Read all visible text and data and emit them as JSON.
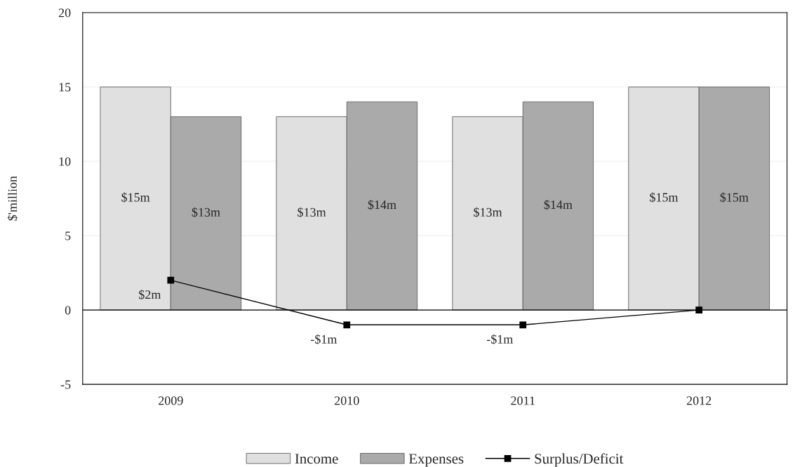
{
  "chart_data": {
    "type": "bar",
    "ylabel": "$'million",
    "categories": [
      "2009",
      "2010",
      "2011",
      "2012"
    ],
    "series": [
      {
        "name": "Income",
        "color": "#e0e0e0",
        "values": [
          15,
          13,
          13,
          15
        ],
        "value_labels": [
          "$15m",
          "$13m",
          "$13m",
          "$15m"
        ]
      },
      {
        "name": "Expenses",
        "color": "#aaaaaa",
        "values": [
          13,
          14,
          14,
          15
        ],
        "value_labels": [
          "$13m",
          "$14m",
          "$14m",
          "$15m"
        ]
      },
      {
        "name": "Surplus/Deficit",
        "type": "line",
        "color": "#000000",
        "marker": "square",
        "line_style": "solid",
        "values": [
          2,
          -1,
          -1,
          0
        ],
        "value_labels": [
          "$2m",
          "-$1m",
          "-$1m",
          null
        ]
      }
    ],
    "ylim": [
      -5,
      20
    ],
    "yticks": [
      -5,
      0,
      5,
      10,
      15,
      20
    ],
    "grid": "y",
    "ref_lines": [
      {
        "axis": "y",
        "value": 0,
        "color": "#000000"
      }
    ],
    "legend": "bottom"
  }
}
